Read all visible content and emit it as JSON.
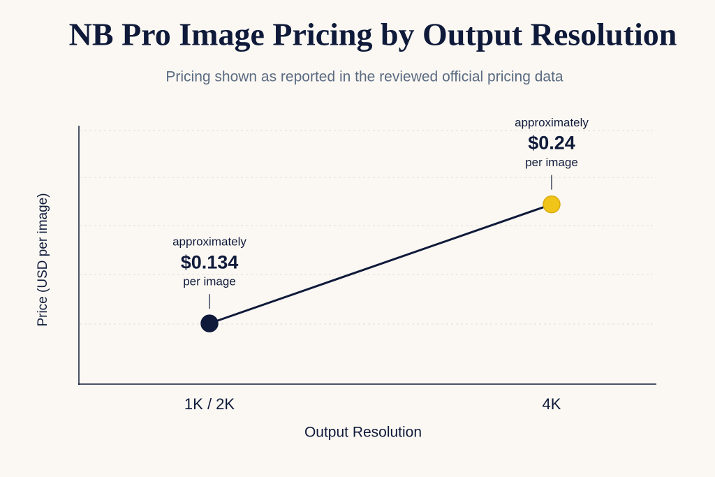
{
  "chart_data": {
    "type": "line",
    "title": "NB Pro Image Pricing by Output Resolution",
    "subtitle": "Pricing shown as reported in the reviewed official pricing data",
    "x_label": "Output Resolution",
    "y_label": "Price (USD per image)",
    "categories": [
      "1K / 2K",
      "4K"
    ],
    "values": [
      0.134,
      0.24
    ],
    "value_labels": [
      "$0.134",
      "$0.24"
    ],
    "annotations": [
      [
        "approximately",
        "per image"
      ],
      [
        "approximately",
        "per image"
      ]
    ],
    "color": "#0f1a3a",
    "point_colors": [
      "#0f1a3a",
      "#f0c419"
    ],
    "ylim": [
      0.08,
      0.31
    ]
  }
}
